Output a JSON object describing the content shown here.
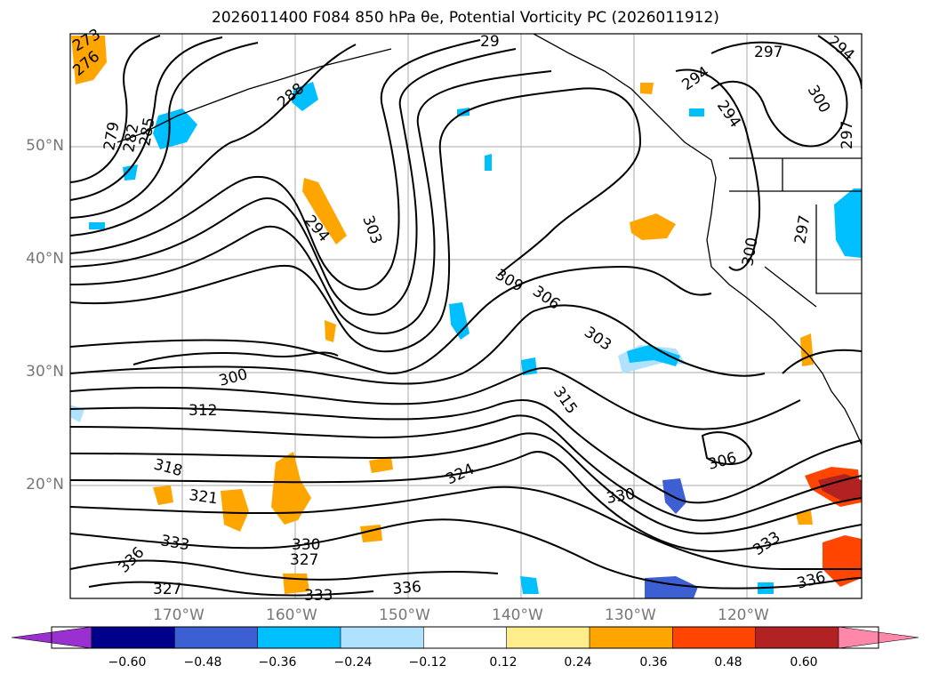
{
  "title": "2026011400 F084 850 hPa θe, Potential Vorticity PC (2026011912)",
  "y_axis": {
    "labels": [
      "50°N",
      "40°N",
      "30°N",
      "20°N"
    ]
  },
  "x_axis": {
    "labels": [
      "170°W",
      "160°W",
      "150°W",
      "140°W",
      "130°W",
      "120°W"
    ]
  },
  "contour_labels": [
    {
      "text": "273"
    },
    {
      "text": "276"
    },
    {
      "text": "279"
    },
    {
      "text": "282"
    },
    {
      "text": "285"
    },
    {
      "text": "288"
    },
    {
      "text": "294"
    },
    {
      "text": "303"
    },
    {
      "text": "309"
    },
    {
      "text": "306"
    },
    {
      "text": "303"
    },
    {
      "text": "300"
    },
    {
      "text": "312"
    },
    {
      "text": "318"
    },
    {
      "text": "321"
    },
    {
      "text": "324"
    },
    {
      "text": "315"
    },
    {
      "text": "306"
    },
    {
      "text": "330"
    },
    {
      "text": "333"
    },
    {
      "text": "336"
    },
    {
      "text": "330"
    },
    {
      "text": "327"
    },
    {
      "text": "327"
    },
    {
      "text": "333"
    },
    {
      "text": "336"
    },
    {
      "text": "333"
    },
    {
      "text": "336"
    },
    {
      "text": "297"
    },
    {
      "text": "294"
    },
    {
      "text": "294"
    },
    {
      "text": "300"
    },
    {
      "text": "297"
    },
    {
      "text": "300"
    },
    {
      "text": "29"
    },
    {
      "text": "294"
    },
    {
      "text": "297"
    }
  ],
  "colorbar": {
    "tick_labels": [
      "−0.60",
      "−0.48",
      "−0.36",
      "−0.24",
      "−0.12",
      "0.12",
      "0.24",
      "0.36",
      "0.48",
      "0.60"
    ],
    "colors": [
      "#9b30d0",
      "#00008b",
      "#3d5fd4",
      "#00bfff",
      "#b0e2ff",
      "#ffffff",
      "#ffec8b",
      "#ffa500",
      "#ff4500",
      "#b22222",
      "#ff88aa"
    ]
  }
}
